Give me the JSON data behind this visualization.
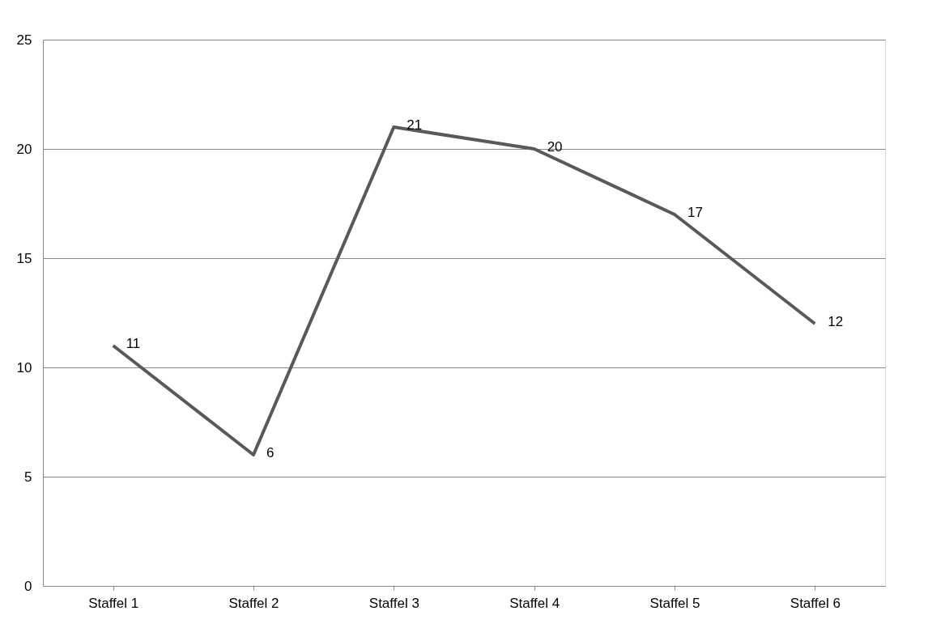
{
  "chart_data": {
    "type": "line",
    "categories": [
      "Staffel 1",
      "Staffel 2",
      "Staffel 3",
      "Staffel 4",
      "Staffel 5",
      "Staffel 6"
    ],
    "values": [
      11,
      6,
      21,
      20,
      17,
      12
    ],
    "color": "#595959",
    "ylim": [
      0,
      25
    ],
    "yticks": [
      0,
      5,
      10,
      15,
      20,
      25
    ],
    "grid": "y",
    "data_labels": true,
    "marker": "none",
    "line_style": "solid"
  }
}
